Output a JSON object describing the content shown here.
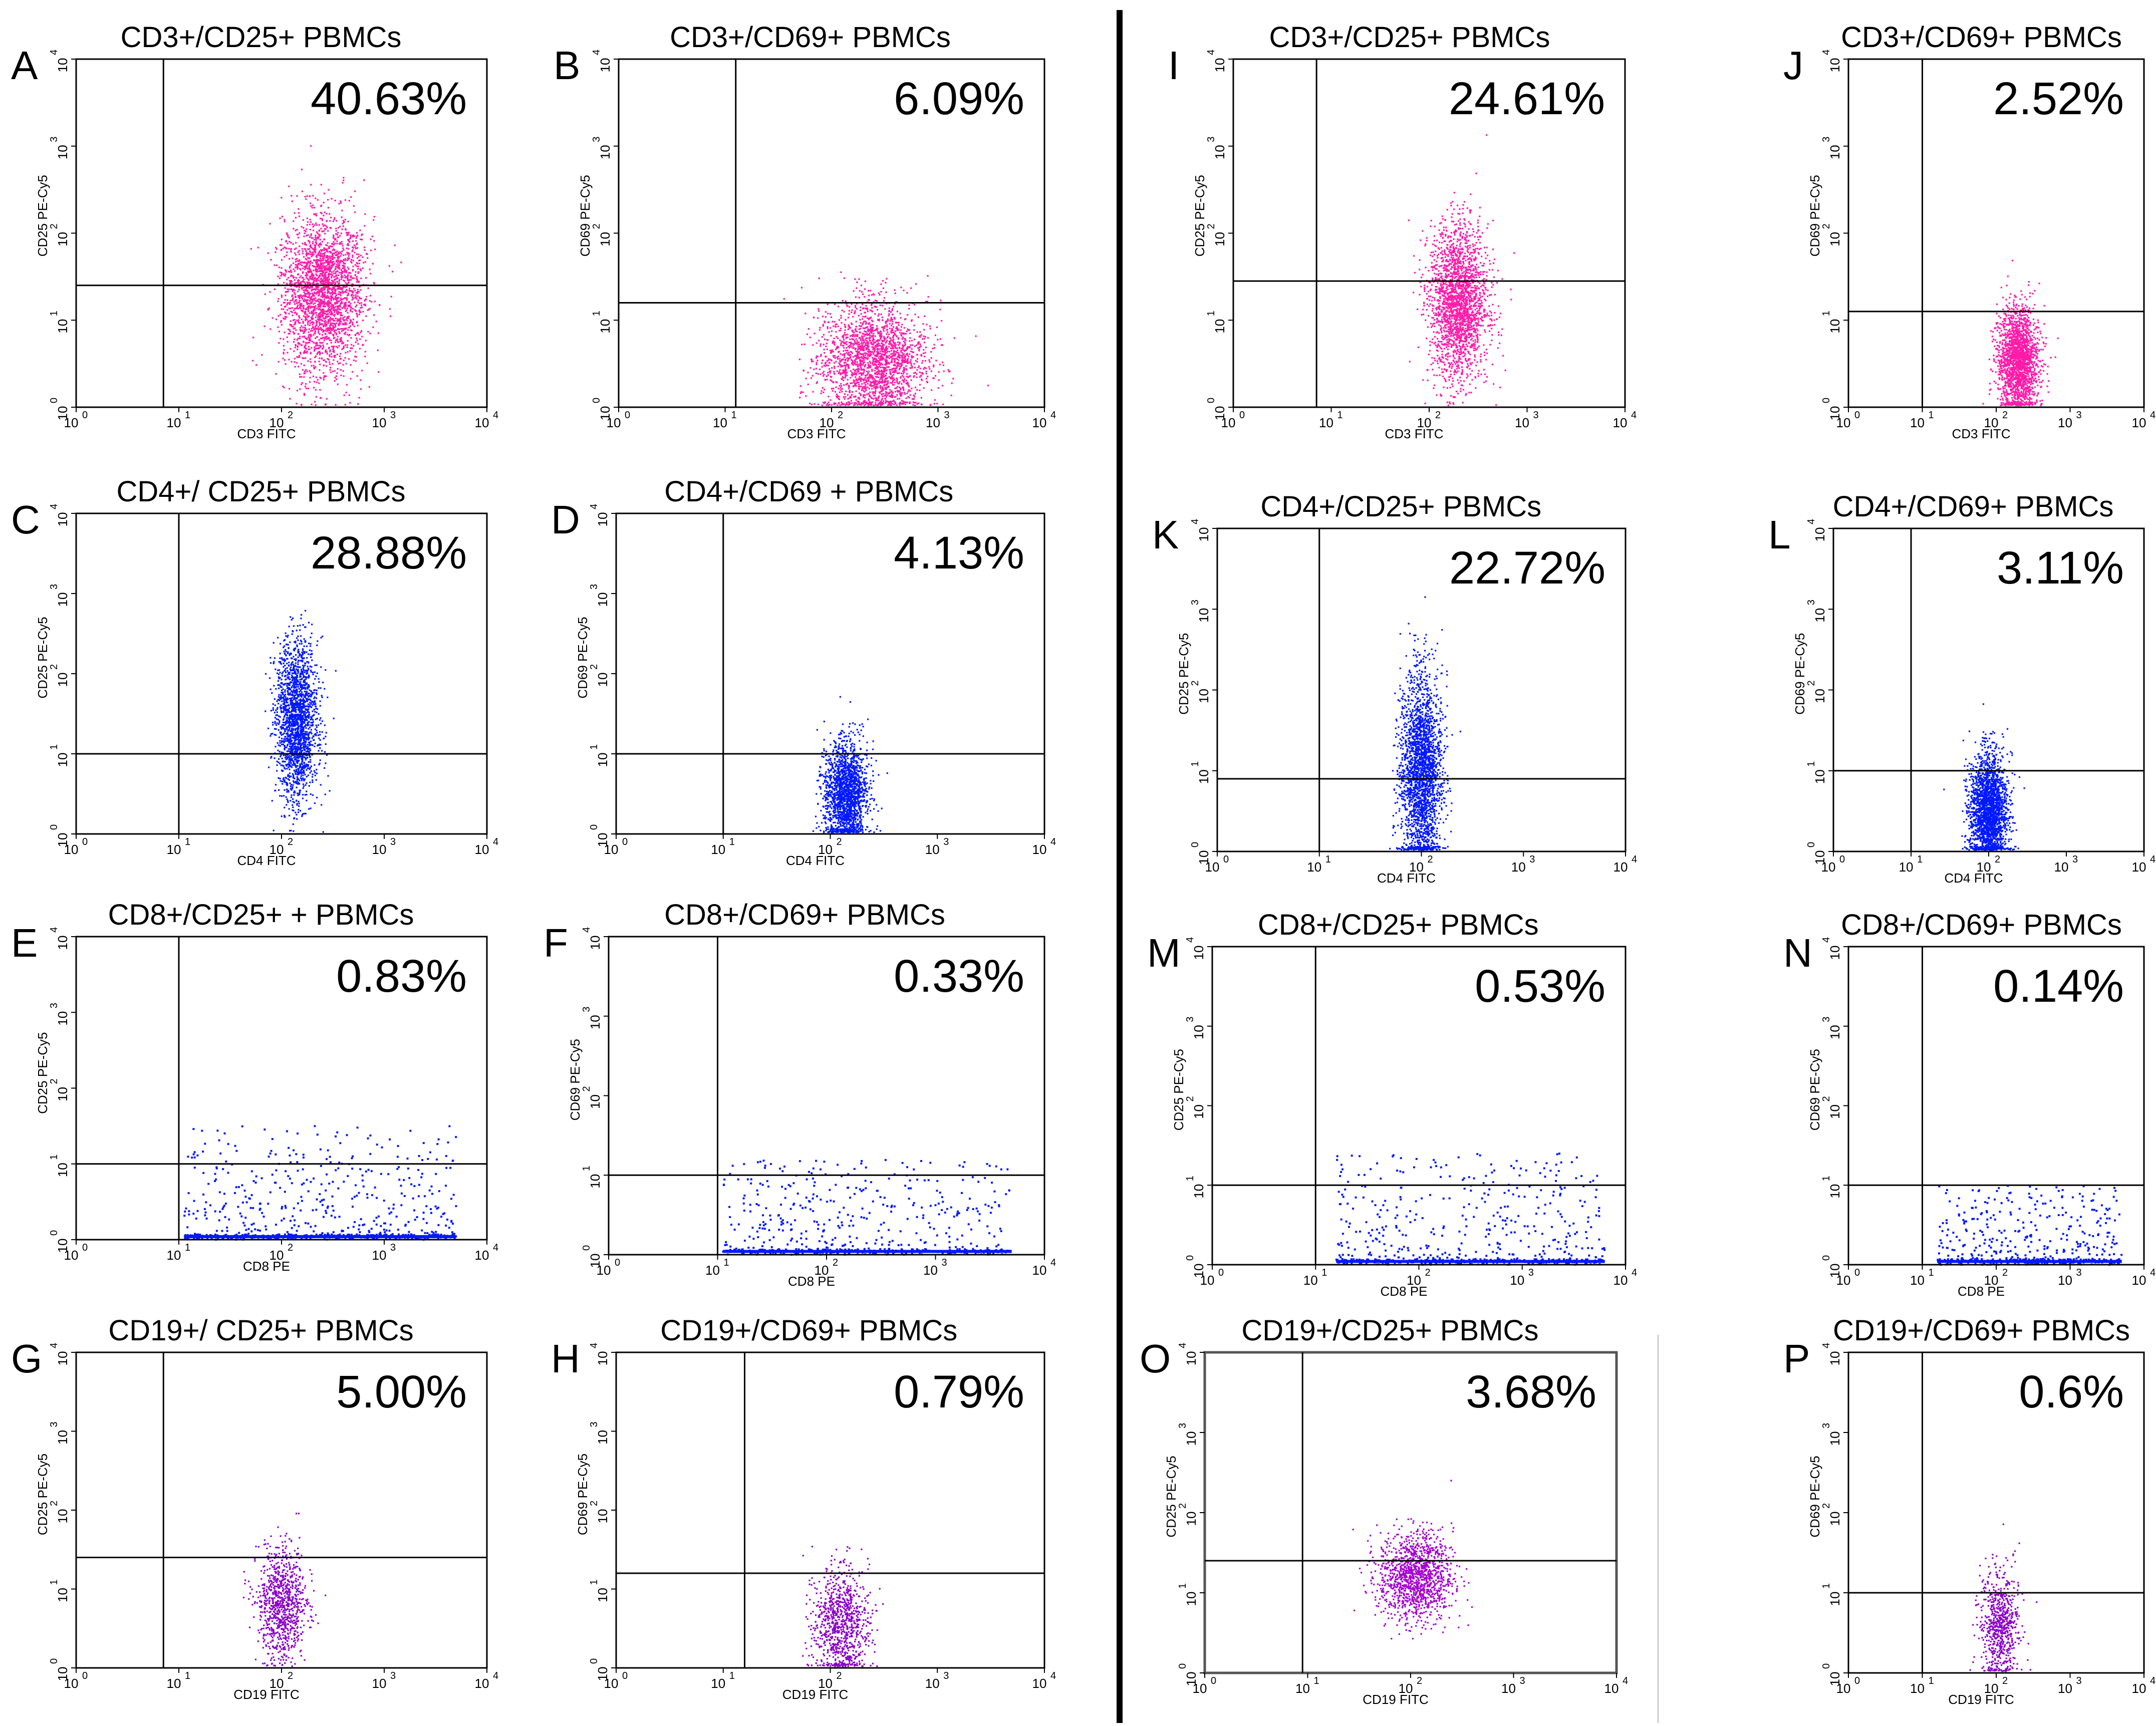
{
  "figure": {
    "description_columns": "left group panels A-H, right group panels I-P",
    "divider": true
  },
  "chart_data": [
    {
      "id": "A",
      "type": "scatter",
      "title": "CD3+/CD25+ PBMCs",
      "percent": "40.63%",
      "xlabel": "CD3 FITC",
      "ylabel": "CD25 PE-Cy5",
      "x_ticks": [
        "10",
        "10",
        "10",
        "10",
        "10"
      ],
      "x_exp": [
        "0",
        "1",
        "2",
        "3",
        "4"
      ],
      "y_exp": [
        "0",
        "1",
        "2",
        "3",
        "4"
      ],
      "xlim": [
        0,
        4
      ],
      "ylim": [
        0,
        4
      ],
      "gate_x": 0.85,
      "gate_y": 1.4,
      "color": "#ff1aa8",
      "cluster": {
        "cx": 2.4,
        "cy": 1.3,
        "sx": 0.2,
        "sy": 0.45,
        "n": 2600
      }
    },
    {
      "id": "B",
      "type": "scatter",
      "title": "CD3+/CD69+ PBMCs",
      "percent": "6.09%",
      "xlabel": "CD3 FITC",
      "ylabel": "CD69 PE-Cy5",
      "x_exp": [
        "0",
        "1",
        "2",
        "3",
        "4"
      ],
      "y_exp": [
        "0",
        "1",
        "2",
        "3",
        "4"
      ],
      "xlim": [
        0,
        4
      ],
      "ylim": [
        0,
        4
      ],
      "gate_x": 1.1,
      "gate_y": 1.2,
      "color": "#ff1aa8",
      "cluster": {
        "cx": 2.4,
        "cy": 0.55,
        "sx": 0.25,
        "sy": 0.33,
        "n": 2200
      }
    },
    {
      "id": "C",
      "type": "scatter",
      "title": "CD4+/ CD25+ PBMCs",
      "percent": "28.88%",
      "xlabel": "CD4 FITC",
      "ylabel": "CD25 PE-Cy5",
      "x_exp": [
        "0",
        "1",
        "2",
        "3",
        "4"
      ],
      "y_exp": [
        "0",
        "1",
        "2",
        "3",
        "4"
      ],
      "xlim": [
        0,
        4
      ],
      "ylim": [
        0,
        4
      ],
      "gate_x": 1.0,
      "gate_y": 1.0,
      "color": "#0018ff",
      "cluster": {
        "cx": 2.15,
        "cy": 1.4,
        "sx": 0.1,
        "sy": 0.5,
        "n": 2000
      }
    },
    {
      "id": "D",
      "type": "scatter",
      "title": "CD4+/CD69 + PBMCs",
      "percent": "4.13%",
      "xlabel": "CD4 FITC",
      "ylabel": "CD69 PE-Cy5",
      "x_exp": [
        "0",
        "1",
        "2",
        "3",
        "4"
      ],
      "y_exp": [
        "0",
        "1",
        "2",
        "3",
        "4"
      ],
      "xlim": [
        0,
        4
      ],
      "ylim": [
        0,
        4
      ],
      "gate_x": 1.0,
      "gate_y": 1.0,
      "color": "#0018ff",
      "cluster": {
        "cx": 2.15,
        "cy": 0.5,
        "sx": 0.1,
        "sy": 0.32,
        "n": 1800
      }
    },
    {
      "id": "E",
      "type": "scatter",
      "title": "CD8+/CD25+ + PBMCs",
      "percent": "0.83%",
      "xlabel": "CD8 PE",
      "ylabel": "CD25 PE-Cy5",
      "x_exp": [
        "0",
        "1",
        "2",
        "3",
        "4"
      ],
      "y_exp": [
        "0",
        "1",
        "2",
        "3",
        "4"
      ],
      "xlim": [
        0,
        4
      ],
      "ylim": [
        0,
        4
      ],
      "gate_x": 1.0,
      "gate_y": 1.0,
      "color": "#0018ff",
      "spread": {
        "x0": 1.05,
        "x1": 3.7,
        "ymax": 1.5,
        "n": 700
      }
    },
    {
      "id": "F",
      "type": "scatter",
      "title": "CD8+/CD69+ PBMCs",
      "percent": "0.33%",
      "xlabel": "CD8 PE",
      "ylabel": "CD69 PE-Cy5",
      "x_exp": [
        "0",
        "1",
        "2",
        "3",
        "4"
      ],
      "y_exp": [
        "0",
        "1",
        "2",
        "3",
        "4"
      ],
      "xlim": [
        0,
        4
      ],
      "ylim": [
        0,
        4
      ],
      "gate_x": 1.0,
      "gate_y": 1.0,
      "color": "#0018ff",
      "spread": {
        "x0": 1.05,
        "x1": 3.7,
        "ymax": 1.2,
        "n": 600
      }
    },
    {
      "id": "G",
      "type": "scatter",
      "title": "CD19+/ CD25+ PBMCs",
      "percent": "5.00%",
      "xlabel": "CD19 FITC",
      "ylabel": "CD25 PE-Cy5",
      "x_exp": [
        "0",
        "1",
        "2",
        "3",
        "4"
      ],
      "y_exp": [
        "0",
        "1",
        "2",
        "3",
        "4"
      ],
      "xlim": [
        0,
        4
      ],
      "ylim": [
        0,
        4
      ],
      "gate_x": 0.85,
      "gate_y": 1.4,
      "color": "#8a00c8",
      "cluster": {
        "cx": 2.0,
        "cy": 0.8,
        "sx": 0.12,
        "sy": 0.35,
        "n": 900
      }
    },
    {
      "id": "H",
      "type": "scatter",
      "title": "CD19+/CD69+ PBMCs",
      "percent": "0.79%",
      "xlabel": "CD19 FITC",
      "ylabel": "CD69 PE-Cy5",
      "x_exp": [
        "0",
        "1",
        "2",
        "3",
        "4"
      ],
      "y_exp": [
        "0",
        "1",
        "2",
        "3",
        "4"
      ],
      "xlim": [
        0,
        4
      ],
      "ylim": [
        0,
        4
      ],
      "gate_x": 1.2,
      "gate_y": 1.2,
      "color": "#8a00c8",
      "cluster": {
        "cx": 2.1,
        "cy": 0.55,
        "sx": 0.13,
        "sy": 0.35,
        "n": 900
      }
    },
    {
      "id": "I",
      "type": "scatter",
      "title": "CD3+/CD25+ PBMCs",
      "percent": "24.61%",
      "xlabel": "CD3 FITC",
      "ylabel": "CD25 PE-Cy5",
      "x_exp": [
        "0",
        "1",
        "2",
        "3",
        "4"
      ],
      "y_exp": [
        "0",
        "1",
        "2",
        "3",
        "4"
      ],
      "xlim": [
        0,
        4
      ],
      "ylim": [
        0,
        4
      ],
      "gate_x": 0.85,
      "gate_y": 1.45,
      "color": "#ff1aa8",
      "cluster": {
        "cx": 2.3,
        "cy": 1.2,
        "sx": 0.15,
        "sy": 0.45,
        "n": 2200
      }
    },
    {
      "id": "J",
      "type": "scatter",
      "title": "CD3+/CD69+ PBMCs",
      "percent": "2.52%",
      "xlabel": "CD3 FITC",
      "ylabel": "CD69 PE-Cy5",
      "x_exp": [
        "0",
        "1",
        "2",
        "3",
        "4"
      ],
      "y_exp": [
        "0",
        "1",
        "2",
        "3",
        "4"
      ],
      "xlim": [
        0,
        4
      ],
      "ylim": [
        0,
        4
      ],
      "gate_x": 1.0,
      "gate_y": 1.1,
      "color": "#ff1aa8",
      "cluster": {
        "cx": 2.3,
        "cy": 0.55,
        "sx": 0.14,
        "sy": 0.3,
        "n": 2000
      }
    },
    {
      "id": "K",
      "type": "scatter",
      "title": "CD4+/CD25+ PBMCs",
      "percent": "22.72%",
      "xlabel": "CD4 FITC",
      "ylabel": "CD25 PE-Cy5",
      "x_exp": [
        "0",
        "1",
        "2",
        "3",
        "4"
      ],
      "y_exp": [
        "0",
        "1",
        "2",
        "3",
        "4"
      ],
      "xlim": [
        0,
        4
      ],
      "ylim": [
        0,
        4
      ],
      "gate_x": 1.0,
      "gate_y": 0.9,
      "color": "#0018ff",
      "cluster": {
        "cx": 2.0,
        "cy": 1.0,
        "sx": 0.1,
        "sy": 0.6,
        "n": 2400
      }
    },
    {
      "id": "L",
      "type": "scatter",
      "title": "CD4+/CD69+ PBMCs",
      "percent": "3.11%",
      "xlabel": "CD4 FITC",
      "ylabel": "CD69 PE-Cy5",
      "x_exp": [
        "0",
        "1",
        "2",
        "3",
        "4"
      ],
      "y_exp": [
        "0",
        "1",
        "2",
        "3",
        "4"
      ],
      "xlim": [
        0,
        4
      ],
      "ylim": [
        0,
        4
      ],
      "gate_x": 1.0,
      "gate_y": 1.0,
      "color": "#0018ff",
      "cluster": {
        "cx": 2.0,
        "cy": 0.5,
        "sx": 0.12,
        "sy": 0.35,
        "n": 2200
      }
    },
    {
      "id": "M",
      "type": "scatter",
      "title": "CD8+/CD25+ PBMCs",
      "percent": "0.53%",
      "xlabel": "CD8 PE",
      "ylabel": "CD25 PE-Cy5",
      "x_exp": [
        "0",
        "1",
        "2",
        "3",
        "4"
      ],
      "y_exp": [
        "0",
        "1",
        "2",
        "3",
        "4"
      ],
      "xlim": [
        0,
        4
      ],
      "ylim": [
        0,
        4
      ],
      "gate_x": 1.0,
      "gate_y": 1.0,
      "color": "#0018ff",
      "spread": {
        "x0": 1.2,
        "x1": 3.8,
        "ymax": 1.4,
        "n": 650
      }
    },
    {
      "id": "N",
      "type": "scatter",
      "title": "CD8+/CD69+ PBMCs",
      "percent": "0.14%",
      "xlabel": "CD8 PE",
      "ylabel": "CD69 PE-Cy5",
      "x_exp": [
        "0",
        "1",
        "2",
        "3",
        "4"
      ],
      "y_exp": [
        "0",
        "1",
        "2",
        "3",
        "4"
      ],
      "xlim": [
        0,
        4
      ],
      "ylim": [
        0,
        4
      ],
      "gate_x": 1.0,
      "gate_y": 1.0,
      "color": "#0018ff",
      "spread": {
        "x0": 1.2,
        "x1": 3.7,
        "ymax": 1.0,
        "n": 550
      }
    },
    {
      "id": "O",
      "type": "scatter",
      "title": "CD19+/CD25+ PBMCs",
      "percent": "3.68%",
      "xlabel": "CD19 FITC",
      "ylabel": "CD25 PE-Cy5",
      "x_exp": [
        "0",
        "1",
        "2",
        "3",
        "4"
      ],
      "y_exp": [
        "0",
        "1",
        "2",
        "3",
        "4"
      ],
      "xlim": [
        0,
        4
      ],
      "ylim": [
        0,
        4
      ],
      "gate_x": 0.95,
      "gate_y": 1.4,
      "color": "#a400d0",
      "framed": true,
      "cluster": {
        "cx": 2.05,
        "cy": 1.2,
        "sx": 0.18,
        "sy": 0.28,
        "n": 1300
      }
    },
    {
      "id": "P",
      "type": "scatter",
      "title": "CD19+/CD69+ PBMCs",
      "percent": "0.6%",
      "xlabel": "CD19 FITC",
      "ylabel": "CD69 PE-Cy5",
      "x_exp": [
        "0",
        "1",
        "2",
        "3",
        "4"
      ],
      "y_exp": [
        "0",
        "1",
        "2",
        "3",
        "4"
      ],
      "xlim": [
        0,
        4
      ],
      "ylim": [
        0,
        4
      ],
      "gate_x": 1.0,
      "gate_y": 1.0,
      "color": "#8a00c8",
      "cluster": {
        "cx": 2.05,
        "cy": 0.6,
        "sx": 0.13,
        "sy": 0.35,
        "n": 700
      }
    }
  ]
}
